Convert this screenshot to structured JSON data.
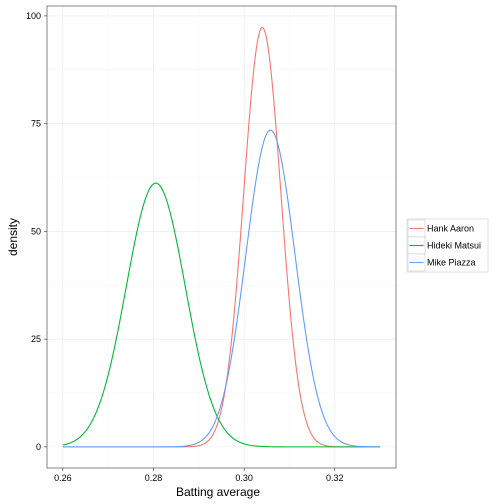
{
  "chart_data": {
    "type": "line",
    "xlabel": "Batting average",
    "ylabel": "density",
    "xlim": [
      0.26,
      0.33
    ],
    "ylim": [
      0,
      100
    ],
    "x_ticks": [
      0.26,
      0.28,
      0.3,
      0.32
    ],
    "x_tick_labels": [
      "0.26",
      "0.28",
      "0.30",
      "0.32"
    ],
    "y_ticks": [
      0,
      25,
      50,
      75,
      100
    ],
    "y_tick_labels": [
      "0",
      "25",
      "50",
      "75",
      "100"
    ],
    "grid": true,
    "legend_position": "right",
    "series": [
      {
        "name": "Hank Aaron",
        "color": "#F8766D",
        "peak_x": 0.304,
        "peak_y": 97.3
      },
      {
        "name": "Hideki Matsui",
        "color": "#00BA38",
        "peak_x": 0.2805,
        "peak_y": 61.2
      },
      {
        "name": "Mike Piazza",
        "color": "#619CFF",
        "peak_x": 0.3058,
        "peak_y": 73.5
      }
    ]
  }
}
